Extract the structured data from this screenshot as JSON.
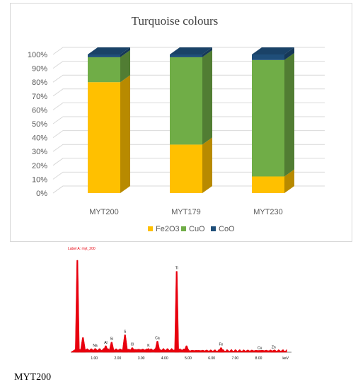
{
  "chart_data": [
    {
      "type": "bar",
      "stacked": true,
      "title": "Turquoise colours",
      "categories": [
        "MYT200",
        "MYT179",
        "MYT230"
      ],
      "series": [
        {
          "name": "Fe2O3",
          "values": [
            80,
            35,
            12
          ],
          "color": "#FFC000"
        },
        {
          "name": "CuO",
          "values": [
            18,
            63,
            84
          ],
          "color": "#70AD47"
        },
        {
          "name": "CoO",
          "values": [
            2,
            2,
            4
          ],
          "color": "#1F4E79"
        }
      ],
      "yticks": [
        "0%",
        "10%",
        "20%",
        "30%",
        "40%",
        "50%",
        "60%",
        "70%",
        "80%",
        "90%",
        "100%"
      ],
      "ylim": [
        0,
        100
      ],
      "legend": "bottom"
    },
    {
      "type": "line",
      "title": "Label A: myt_200",
      "x_unit": "keV",
      "xticks": [
        "1.00",
        "2.00",
        "3.00",
        "4.00",
        "5.00",
        "6.00",
        "7.00",
        "8.00"
      ],
      "xlim": [
        0,
        9.4
      ],
      "peaks": [
        {
          "element": "",
          "kev": 0.28,
          "height": 100
        },
        {
          "element": "",
          "kev": 0.52,
          "height": 16
        },
        {
          "element": "Na",
          "kev": 1.04,
          "height": 4
        },
        {
          "element": "Al",
          "kev": 1.49,
          "height": 7
        },
        {
          "element": "Si",
          "kev": 1.74,
          "height": 11
        },
        {
          "element": "S",
          "kev": 2.31,
          "height": 19
        },
        {
          "element": "Cl",
          "kev": 2.62,
          "height": 5
        },
        {
          "element": "K",
          "kev": 3.31,
          "height": 4
        },
        {
          "element": "Ca",
          "kev": 3.69,
          "height": 12
        },
        {
          "element": "Ti",
          "kev": 4.51,
          "height": 88
        },
        {
          "element": "",
          "kev": 4.93,
          "height": 7
        },
        {
          "element": "Fe",
          "kev": 6.4,
          "height": 5
        },
        {
          "element": "Cu",
          "kev": 8.05,
          "height": 1
        },
        {
          "element": "Zn",
          "kev": 8.64,
          "height": 2
        }
      ],
      "color": "#E8000E"
    }
  ],
  "caption": "MYT200"
}
